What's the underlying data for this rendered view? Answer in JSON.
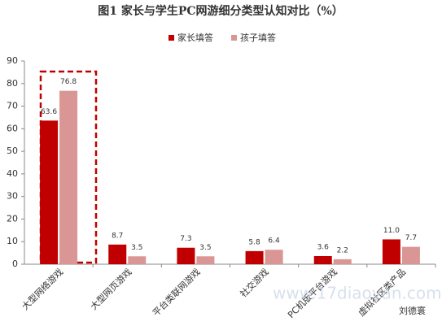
{
  "chart_data": {
    "type": "bar",
    "title": "图1 家长与学生PC网游细分类型认知对比（%）",
    "categories": [
      "大型网络游戏",
      "大型网页游戏",
      "平台类联网游戏",
      "社交游戏",
      "PC机版平台游戏",
      "虚拟社区类产品"
    ],
    "series": [
      {
        "name": "家长填答",
        "color": "#c00000",
        "values": [
          63.6,
          8.7,
          7.3,
          5.8,
          3.6,
          11.0
        ],
        "value_labels": [
          "63.6",
          "8.7",
          "7.3",
          "5.8",
          "3.6",
          "11.0"
        ]
      },
      {
        "name": "孩子填答",
        "color": "#d99694",
        "values": [
          76.8,
          3.5,
          3.5,
          6.4,
          2.2,
          7.7
        ],
        "value_labels": [
          "76.8",
          "3.5",
          "3.5",
          "6.4",
          "2.2",
          "7.7"
        ]
      }
    ],
    "ylim": [
      0,
      90
    ],
    "yticks": [
      0,
      10,
      20,
      30,
      40,
      50,
      60,
      70,
      80,
      90
    ],
    "legend": "top",
    "annotations": [
      "www.17diaoyan.com",
      "刘德寰"
    ]
  }
}
